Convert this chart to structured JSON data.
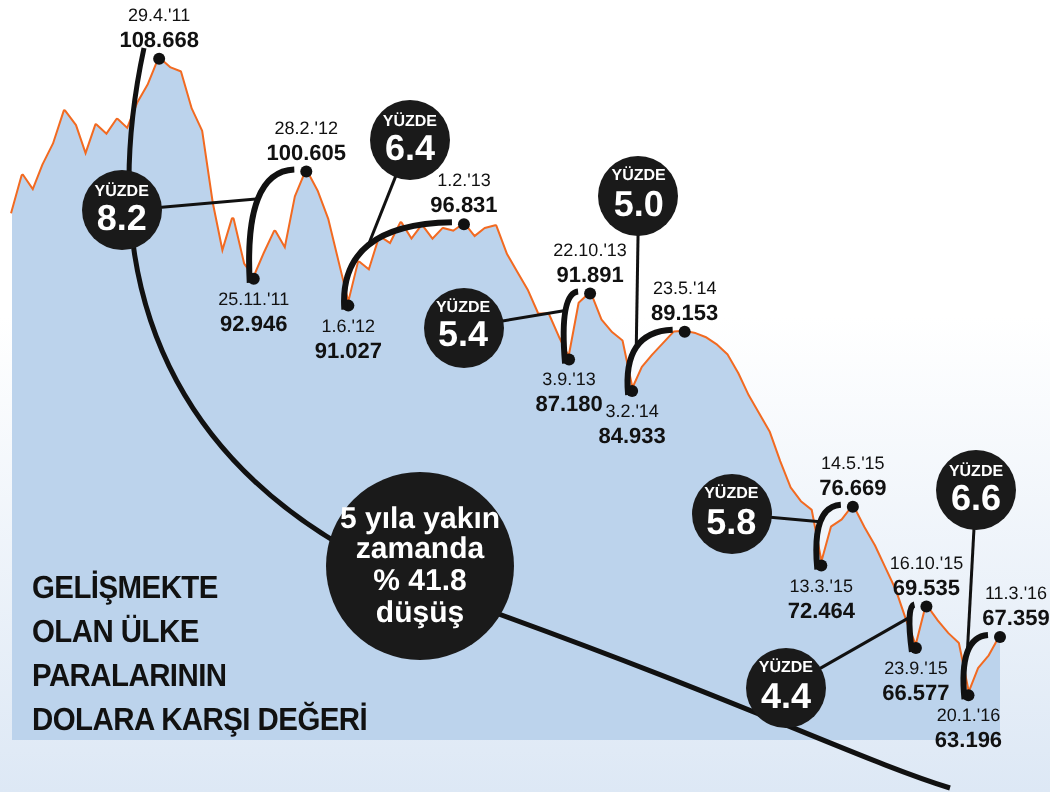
{
  "chart_data": {
    "type": "area",
    "title": "GELİŞMEKTE\nOLAN ÜLKE\nPARALARININ\nDOLARA KARŞI DEĞERİ",
    "tick_labels": false,
    "categories": [
      null,
      null,
      null,
      null,
      null,
      null,
      null,
      null,
      null,
      null,
      null,
      null,
      null,
      null,
      null,
      null,
      null,
      null,
      null,
      null,
      null,
      null,
      null,
      null,
      null,
      null,
      null,
      null,
      null,
      null,
      null,
      null,
      null,
      null,
      null,
      null,
      null,
      null,
      null,
      null,
      null,
      null,
      null,
      null,
      null,
      null,
      null,
      null,
      null,
      null,
      null,
      null,
      null,
      null,
      null,
      null,
      null,
      null,
      null,
      null,
      null,
      null,
      null,
      null,
      null,
      null,
      null,
      null,
      null,
      null,
      null,
      null,
      null,
      null,
      null,
      null,
      null,
      null,
      null,
      null,
      null,
      null,
      null,
      null,
      null,
      null,
      null,
      null,
      null,
      null,
      null,
      null,
      null,
      null,
      null
    ],
    "series": [
      {
        "color": "#bcd3ec",
        "values": [
          97.6,
          100.3,
          99.2,
          101.1,
          102.6,
          104.9,
          103.9,
          101.7,
          103.9,
          103.2,
          104.3,
          103.6,
          105.5,
          106.8,
          108.668,
          108.0,
          107.7,
          105.1,
          103.5,
          98.4,
          94.7,
          97.2,
          94.0,
          92.946,
          94.7,
          96.3,
          95.0,
          98.8,
          100.605,
          99.2,
          97.2,
          94.1,
          91.027,
          94.1,
          93.5,
          95.9,
          95.4,
          96.9,
          95.7,
          96.7,
          95.7,
          96.5,
          96.3,
          96.831,
          95.9,
          96.5,
          96.7,
          94.7,
          93.4,
          92.1,
          90.4,
          90.4,
          88.7,
          87.18,
          91.2,
          91.891,
          90.0,
          89.1,
          88.5,
          84.933,
          86.6,
          87.5,
          88.3,
          89.1,
          89.153,
          89.0,
          88.7,
          88.2,
          87.5,
          86.2,
          84.6,
          83.3,
          82.0,
          79.9,
          78.0,
          77.0,
          76.4,
          72.464,
          75.2,
          75.7,
          76.669,
          75.2,
          73.9,
          72.3,
          70.7,
          68.5,
          66.577,
          69.535,
          68.5,
          67.6,
          66.9,
          63.196,
          65.1,
          66.0,
          67.359
        ]
      },
      {
        "type": "line",
        "color": "#f26a21",
        "values": [
          97.6,
          100.3,
          99.2,
          101.1,
          102.6,
          104.9,
          103.9,
          101.7,
          103.9,
          103.2,
          104.3,
          103.6,
          105.5,
          106.8,
          108.668,
          108.0,
          107.7,
          105.1,
          103.5,
          98.4,
          94.7,
          97.2,
          94.0,
          92.946,
          94.7,
          96.3,
          95.0,
          98.8,
          100.605,
          99.2,
          97.2,
          94.1,
          91.027,
          94.1,
          93.5,
          95.9,
          95.4,
          96.9,
          95.7,
          96.7,
          95.7,
          96.5,
          96.3,
          96.831,
          95.9,
          96.5,
          96.7,
          94.7,
          93.4,
          92.1,
          90.4,
          90.4,
          88.7,
          87.18,
          91.2,
          91.891,
          90.0,
          89.1,
          88.5,
          84.933,
          86.6,
          87.5,
          88.3,
          89.1,
          89.153,
          89.0,
          88.7,
          88.2,
          87.5,
          86.2,
          84.6,
          83.3,
          82.0,
          79.9,
          78.0,
          77.0,
          76.4,
          72.464,
          75.2,
          75.7,
          76.669,
          75.2,
          73.9,
          72.3,
          70.7,
          68.5,
          66.577,
          69.535,
          68.5,
          67.6,
          66.9,
          63.196,
          65.1,
          66.0,
          67.359
        ],
        "value_labels": [
          null,
          null,
          null,
          null,
          null,
          null,
          null,
          null,
          null,
          null,
          null,
          null,
          null,
          null,
          "108.668",
          null,
          null,
          null,
          null,
          null,
          null,
          null,
          null,
          "92.946",
          null,
          null,
          null,
          null,
          "100.605",
          null,
          null,
          null,
          "91.027",
          null,
          null,
          null,
          null,
          null,
          null,
          null,
          null,
          null,
          null,
          "96.831",
          null,
          null,
          null,
          null,
          null,
          null,
          null,
          null,
          null,
          "87.180",
          null,
          "91.891",
          null,
          null,
          null,
          "84.933",
          null,
          null,
          null,
          null,
          "89.153",
          null,
          null,
          null,
          null,
          null,
          null,
          null,
          null,
          null,
          null,
          null,
          null,
          "72.464",
          null,
          null,
          "76.669",
          null,
          null,
          null,
          null,
          null,
          "66.577",
          "69.535",
          null,
          null,
          null,
          "63.196",
          null,
          null,
          "67.359"
        ]
      }
    ],
    "annotations": [
      "29.4.'11",
      "25.11.'11",
      "28.2.'12",
      "1.6.'12",
      "1.2.'13",
      "3.9.'13",
      "22.10.'13",
      "3.2.'14",
      "23.5.'14",
      "13.3.'15",
      "14.5.'15",
      "23.9.'15",
      "16.10.'15",
      "20.1.'16",
      "11.3.'16",
      "YÜZDE\n8.2",
      "YÜZDE\n6.4",
      "YÜZDE\n5.4",
      "YÜZDE\n5.0",
      "YÜZDE\n5.8",
      "YÜZDE\n4.4",
      "YÜZDE\n6.6",
      "5 yıla yakın\nzamanda\n% 41.8\ndüşüş"
    ]
  }
}
